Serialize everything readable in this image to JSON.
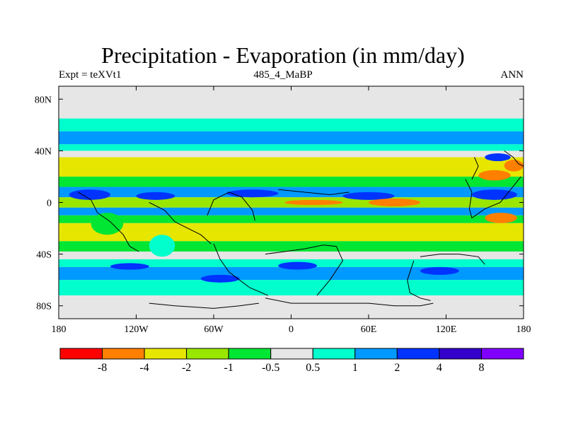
{
  "chart_data": {
    "type": "heatmap",
    "title": "Precipitation - Evaporation (in mm/day)",
    "subtitle_left": "Expt = teXVt1",
    "subtitle_center": "485_4_MaBP",
    "subtitle_right": "ANN",
    "xlim": [
      -180,
      180
    ],
    "ylim": [
      -90,
      90
    ],
    "x_ticks": [
      {
        "value": -180,
        "label": "180"
      },
      {
        "value": -120,
        "label": "120W"
      },
      {
        "value": -60,
        "label": "60W"
      },
      {
        "value": 0,
        "label": "0"
      },
      {
        "value": 60,
        "label": "60E"
      },
      {
        "value": 120,
        "label": "120E"
      },
      {
        "value": 180,
        "label": "180"
      }
    ],
    "y_ticks": [
      {
        "value": 80,
        "label": "80N"
      },
      {
        "value": 40,
        "label": "40N"
      },
      {
        "value": 0,
        "label": "0"
      },
      {
        "value": -40,
        "label": "40S"
      },
      {
        "value": -80,
        "label": "80S"
      }
    ],
    "missing_color": "#e6e6e6",
    "colorbar": {
      "colors": [
        "#ff0000",
        "#ff8000",
        "#e6e600",
        "#99e600",
        "#00e633",
        "#e6e6e6",
        "#00ffcc",
        "#0099ff",
        "#0033ff",
        "#3300cc",
        "#8000ff"
      ],
      "labels": [
        "-8",
        "-4",
        "-2",
        "-1",
        "-0.5",
        "0.5",
        "1",
        "2",
        "4",
        "8"
      ]
    },
    "zonal_bands": [
      {
        "lat": [
          65,
          90
        ],
        "value": null
      },
      {
        "lat": [
          55,
          65
        ],
        "value": 0.7
      },
      {
        "lat": [
          45,
          55
        ],
        "value": 1.5
      },
      {
        "lat": [
          40,
          45
        ],
        "value": 0.7
      },
      {
        "lat": [
          35,
          40
        ],
        "value": 0.2
      },
      {
        "lat": [
          20,
          35
        ],
        "value": -2.5
      },
      {
        "lat": [
          12,
          20
        ],
        "value": -0.7
      },
      {
        "lat": [
          4,
          12
        ],
        "value": 1.5
      },
      {
        "lat": [
          -4,
          4
        ],
        "value": -1.5
      },
      {
        "lat": [
          -10,
          -4
        ],
        "value": 1.5
      },
      {
        "lat": [
          -16,
          -10
        ],
        "value": -0.7
      },
      {
        "lat": [
          -30,
          -16
        ],
        "value": -2.5
      },
      {
        "lat": [
          -38,
          -30
        ],
        "value": -0.7
      },
      {
        "lat": [
          -44,
          -38
        ],
        "value": 0.2
      },
      {
        "lat": [
          -50,
          -44
        ],
        "value": 0.7
      },
      {
        "lat": [
          -60,
          -50
        ],
        "value": 1.5
      },
      {
        "lat": [
          -72,
          -60
        ],
        "value": 0.7
      },
      {
        "lat": [
          -90,
          -72
        ],
        "value": null
      }
    ],
    "patches": [
      {
        "lon": [
          -172,
          -140
        ],
        "lat": [
          10,
          2
        ],
        "value": 3
      },
      {
        "lon": [
          -120,
          -90
        ],
        "lat": [
          8,
          2
        ],
        "value": 3
      },
      {
        "lon": [
          -50,
          -10
        ],
        "lat": [
          10,
          4
        ],
        "value": 3
      },
      {
        "lon": [
          40,
          80
        ],
        "lat": [
          8,
          2
        ],
        "value": 3
      },
      {
        "lon": [
          140,
          175
        ],
        "lat": [
          10,
          2
        ],
        "value": 3
      },
      {
        "lon": [
          60,
          100
        ],
        "lat": [
          3,
          -3
        ],
        "value": -5
      },
      {
        "lon": [
          -5,
          40
        ],
        "lat": [
          2,
          -2
        ],
        "value": -5
      },
      {
        "lon": [
          150,
          175
        ],
        "lat": [
          -8,
          -16
        ],
        "value": -5
      },
      {
        "lon": [
          145,
          170
        ],
        "lat": [
          25,
          17
        ],
        "value": -5
      },
      {
        "lon": [
          165,
          180
        ],
        "lat": [
          33,
          24
        ],
        "value": -5
      },
      {
        "lon": [
          -140,
          -110
        ],
        "lat": [
          -47,
          -52
        ],
        "value": 3
      },
      {
        "lon": [
          -70,
          -40
        ],
        "lat": [
          -56,
          -62
        ],
        "value": 3
      },
      {
        "lon": [
          -10,
          20
        ],
        "lat": [
          -46,
          -52
        ],
        "value": 3
      },
      {
        "lon": [
          100,
          130
        ],
        "lat": [
          -50,
          -56
        ],
        "value": 3
      },
      {
        "lon": [
          150,
          170
        ],
        "lat": [
          38,
          32
        ],
        "value": 3
      },
      {
        "lon": [
          -155,
          -130
        ],
        "lat": [
          -8,
          -25
        ],
        "value": -0.7
      },
      {
        "lon": [
          -110,
          -90
        ],
        "lat": [
          -25,
          -42
        ],
        "value": 0.7
      }
    ],
    "coastlines": [
      [
        [
          -165,
          8
        ],
        [
          -155,
          2
        ],
        [
          -150,
          -8
        ],
        [
          -140,
          -15
        ],
        [
          -130,
          -25
        ],
        [
          -125,
          -34
        ],
        [
          -118,
          -38
        ]
      ],
      [
        [
          -110,
          0
        ],
        [
          -98,
          -6
        ],
        [
          -90,
          -15
        ],
        [
          -80,
          -20
        ],
        [
          -70,
          -25
        ],
        [
          -62,
          -32
        ]
      ],
      [
        [
          -65,
          -10
        ],
        [
          -60,
          2
        ],
        [
          -48,
          8
        ],
        [
          -38,
          4
        ],
        [
          -30,
          -6
        ],
        [
          -28,
          -14
        ]
      ],
      [
        [
          -60,
          -32
        ],
        [
          -55,
          -44
        ],
        [
          -48,
          -54
        ],
        [
          -40,
          -60
        ],
        [
          -32,
          -66
        ],
        [
          -18,
          -72
        ]
      ],
      [
        [
          -20,
          -40
        ],
        [
          -5,
          -38
        ],
        [
          10,
          -36
        ],
        [
          25,
          -33
        ],
        [
          35,
          -34
        ],
        [
          40,
          -45
        ],
        [
          30,
          -60
        ],
        [
          20,
          -72
        ]
      ],
      [
        [
          -20,
          -74
        ],
        [
          0,
          -78
        ],
        [
          30,
          -78
        ],
        [
          60,
          -78
        ],
        [
          80,
          -80
        ],
        [
          100,
          -80
        ],
        [
          110,
          -78
        ]
      ],
      [
        [
          -110,
          -78
        ],
        [
          -90,
          -80
        ],
        [
          -60,
          -82
        ],
        [
          -40,
          -80
        ],
        [
          -25,
          -78
        ]
      ],
      [
        [
          95,
          -45
        ],
        [
          90,
          -60
        ],
        [
          92,
          -70
        ],
        [
          100,
          -74
        ],
        [
          108,
          -76
        ]
      ],
      [
        [
          100,
          -42
        ],
        [
          115,
          -40
        ],
        [
          130,
          -40
        ],
        [
          145,
          -42
        ],
        [
          150,
          -48
        ]
      ],
      [
        [
          -10,
          10
        ],
        [
          10,
          8
        ],
        [
          30,
          6
        ],
        [
          45,
          8
        ]
      ],
      [
        [
          135,
          18
        ],
        [
          140,
          8
        ],
        [
          138,
          -5
        ],
        [
          140,
          -12
        ],
        [
          150,
          -5
        ],
        [
          162,
          0
        ],
        [
          170,
          10
        ],
        [
          178,
          20
        ]
      ],
      [
        [
          165,
          40
        ],
        [
          172,
          35
        ],
        [
          176,
          30
        ],
        [
          180,
          28
        ]
      ],
      [
        [
          140,
          18
        ],
        [
          145,
          28
        ],
        [
          142,
          35
        ]
      ]
    ]
  }
}
